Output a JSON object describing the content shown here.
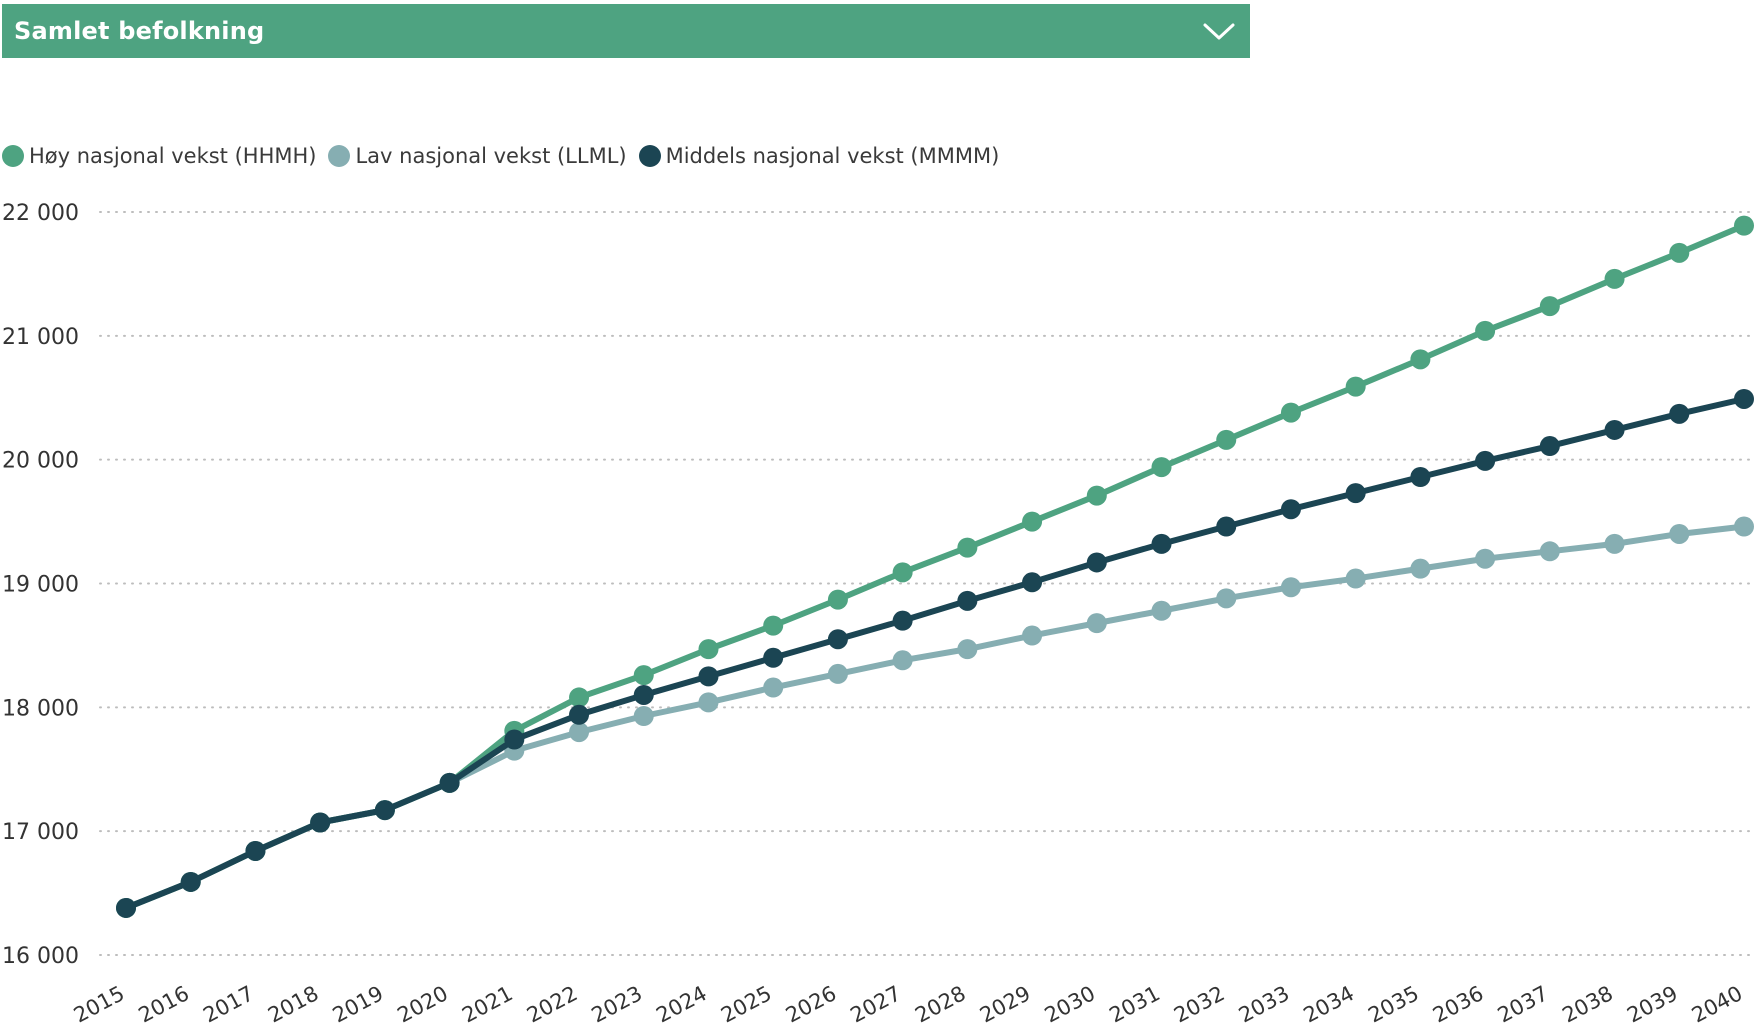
{
  "header": {
    "title": "Samlet befolkning",
    "dropdown_icon": "chevron-down-icon",
    "background_color": "#4ea381"
  },
  "chart_data": {
    "type": "line",
    "title": "Samlet befolkning",
    "xlabel": "",
    "ylabel": "",
    "ylim": [
      16000,
      22000
    ],
    "y_ticks": [
      16000,
      17000,
      18000,
      19000,
      20000,
      21000,
      22000
    ],
    "y_tick_labels": [
      "16 000",
      "17 000",
      "18 000",
      "19 000",
      "20 000",
      "21 000",
      "22 000"
    ],
    "grid": true,
    "legend_position": "top-left",
    "x": [
      "2015",
      "2016",
      "2017",
      "2018",
      "2019",
      "2020",
      "2021",
      "2022",
      "2023",
      "2024",
      "2025",
      "2026",
      "2027",
      "2028",
      "2029",
      "2030",
      "2031",
      "2032",
      "2033",
      "2034",
      "2035",
      "2036",
      "2037",
      "2038",
      "2039",
      "2040"
    ],
    "series": [
      {
        "name": "Høy nasjonal vekst (HHMH)",
        "color": "#4ea381",
        "values": [
          16380,
          16590,
          16840,
          17070,
          17170,
          17390,
          17810,
          18080,
          18260,
          18470,
          18660,
          18870,
          19090,
          19290,
          19500,
          19710,
          19940,
          20160,
          20380,
          20590,
          20810,
          21040,
          21240,
          21460,
          21670,
          21890
        ]
      },
      {
        "name": "Lav nasjonal vekst (LLML)",
        "color": "#86aeb2",
        "values": [
          16380,
          16590,
          16840,
          17070,
          17170,
          17390,
          17650,
          17800,
          17930,
          18040,
          18160,
          18270,
          18380,
          18470,
          18580,
          18680,
          18780,
          18880,
          18970,
          19040,
          19120,
          19200,
          19260,
          19320,
          19400,
          19460
        ]
      },
      {
        "name": "Middels nasjonal vekst (MMMM)",
        "color": "#1b4553",
        "values": [
          16380,
          16590,
          16840,
          17070,
          17170,
          17390,
          17740,
          17940,
          18100,
          18250,
          18400,
          18550,
          18700,
          18860,
          19010,
          19170,
          19320,
          19460,
          19600,
          19730,
          19860,
          19990,
          20110,
          20240,
          20370,
          20490
        ]
      }
    ]
  }
}
